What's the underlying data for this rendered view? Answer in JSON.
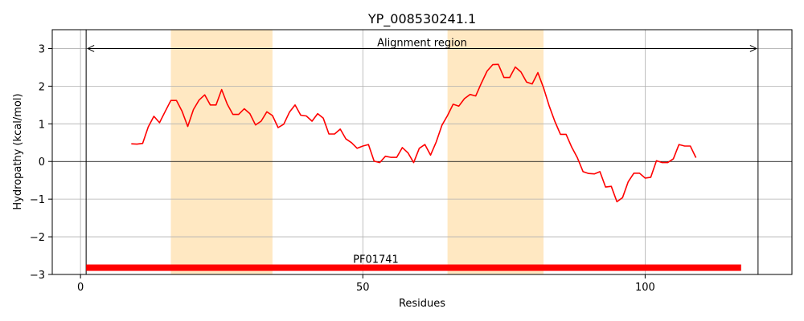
{
  "chart_data": {
    "type": "line",
    "title": "YP_008530241.1",
    "xlabel": "Residues",
    "ylabel": "Hydropathy (kcal/mol)",
    "xlim": [
      -5,
      126
    ],
    "ylim": [
      -3,
      3.5
    ],
    "xticks": [
      0,
      50,
      100
    ],
    "yticks": [
      -3,
      -2,
      -1,
      0,
      1,
      2,
      3
    ],
    "grid": true,
    "highlight_regions": [
      {
        "start": 16,
        "end": 34,
        "color": "#ffe8c2"
      },
      {
        "start": 65,
        "end": 82,
        "color": "#ffe8c2"
      }
    ],
    "alignment_region": {
      "label": "Alignment region",
      "start": 1,
      "end": 120,
      "y": 3.0
    },
    "domain_bar": {
      "label": "PF01741",
      "start": 1,
      "end": 117,
      "y": -2.82,
      "color": "#ff0000"
    },
    "series": [
      {
        "color": "#ff0000",
        "x": [
          9,
          10,
          11,
          12,
          13,
          14,
          15,
          16,
          17,
          18,
          19,
          20,
          21,
          22,
          23,
          24,
          25,
          26,
          27,
          28,
          29,
          30,
          31,
          32,
          33,
          34,
          35,
          36,
          37,
          38,
          39,
          40,
          41,
          42,
          43,
          44,
          45,
          46,
          47,
          48,
          49,
          50,
          51,
          52,
          53,
          54,
          55,
          56,
          57,
          58,
          59,
          60,
          61,
          62,
          63,
          64,
          65,
          66,
          67,
          68,
          69,
          70,
          71,
          72,
          73,
          74,
          75,
          76,
          77,
          78,
          79,
          80,
          81,
          82,
          83,
          84,
          85,
          86,
          87,
          88,
          89,
          90,
          91,
          92,
          93,
          94,
          95,
          96,
          97,
          98,
          99,
          100,
          101,
          102,
          103,
          104,
          105,
          106,
          107,
          108,
          109
        ],
        "y": [
          0.47,
          0.46,
          0.48,
          0.92,
          1.2,
          1.03,
          1.33,
          1.62,
          1.62,
          1.33,
          0.93,
          1.38,
          1.63,
          1.77,
          1.5,
          1.5,
          1.91,
          1.52,
          1.25,
          1.25,
          1.4,
          1.27,
          0.97,
          1.07,
          1.32,
          1.22,
          0.9,
          0.99,
          1.31,
          1.5,
          1.23,
          1.21,
          1.07,
          1.27,
          1.15,
          0.73,
          0.73,
          0.86,
          0.6,
          0.5,
          0.35,
          0.41,
          0.45,
          0.01,
          -0.03,
          0.14,
          0.11,
          0.11,
          0.37,
          0.23,
          -0.03,
          0.35,
          0.45,
          0.17,
          0.52,
          0.96,
          1.22,
          1.52,
          1.47,
          1.67,
          1.78,
          1.74,
          2.08,
          2.4,
          2.57,
          2.58,
          2.23,
          2.23,
          2.51,
          2.38,
          2.11,
          2.06,
          2.36,
          1.96,
          1.48,
          1.07,
          0.72,
          0.72,
          0.38,
          0.1,
          -0.27,
          -0.32,
          -0.33,
          -0.27,
          -0.68,
          -0.66,
          -1.07,
          -0.96,
          -0.54,
          -0.31,
          -0.31,
          -0.44,
          -0.42,
          0.02,
          -0.03,
          -0.03,
          0.07,
          0.45,
          0.41,
          0.41,
          0.1
        ]
      }
    ]
  }
}
